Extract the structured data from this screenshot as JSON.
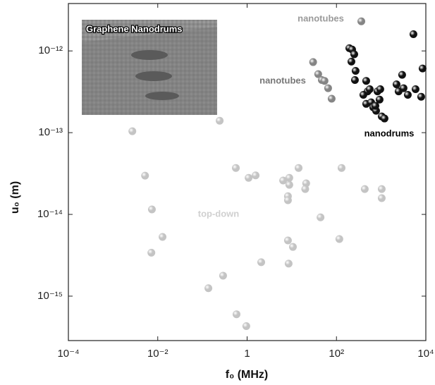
{
  "chart_data": {
    "type": "scatter",
    "x_label": "f₀ (MHz)",
    "y_label": "u₀ (m)",
    "inset_title": "Graphene Nanodrums",
    "annotations": [
      "nanotubes"
    ],
    "log_x": true,
    "log_y": true,
    "xlim": [
      0.0001,
      10000
    ],
    "xticks": [
      {
        "value": 0.0001,
        "label": "10⁻⁴"
      },
      {
        "value": 0.01,
        "label": "10⁻²"
      },
      1,
      {
        "value": 100,
        "label": "10²"
      },
      {
        "value": 10000,
        "label": "10⁴"
      }
    ],
    "ylim": [
      2.86e-16,
      3.8e-12
    ],
    "yticks": [
      {
        "value": 1e-15,
        "label": "10⁻¹⁵"
      },
      {
        "value": 1e-14,
        "label": "10⁻¹⁴"
      },
      {
        "value": 1e-13,
        "label": "10⁻¹³"
      },
      {
        "value": 1e-12,
        "label": "10⁻¹²"
      }
    ],
    "series": [
      {
        "name": "top-down",
        "color": "#c4c4c4",
        "x": [
          0.0027,
          0.0052,
          0.0074,
          0.0128,
          0.0072,
          0.243,
          0.56,
          1.08,
          1.55,
          6.4,
          8.8,
          8.8,
          8.2,
          8.2,
          14.2,
          21,
          20,
          130,
          430,
          1030,
          1030,
          44,
          8.2,
          10.6,
          116,
          8.5,
          2.07,
          0.29,
          0.136,
          0.58,
          0.96
        ],
        "values": [
          1.04e-13,
          2.98e-14,
          1.15e-14,
          5.3e-15,
          3.4e-15,
          1.4e-13,
          3.7e-14,
          2.8e-14,
          3e-14,
          2.6e-14,
          2.8e-14,
          2.3e-14,
          1.67e-14,
          1.49e-14,
          3.7e-14,
          2.4e-14,
          2.04e-14,
          3.7e-14,
          2.04e-14,
          2.04e-14,
          1.58e-14,
          9.2e-15,
          4.8e-15,
          4e-15,
          5e-15,
          2.5e-15,
          2.6e-15,
          1.78e-15,
          1.25e-15,
          6e-16,
          4.3e-16
        ]
      },
      {
        "name": "nanotubes",
        "color": "#858585",
        "x": [
          30,
          39,
          47,
          54,
          65,
          78,
          360
        ],
        "values": [
          7.3e-13,
          5.2e-13,
          4.4e-13,
          4.3e-13,
          3.5e-13,
          2.6e-13,
          2.3e-12
        ]
      },
      {
        "name": "nanodrums",
        "color": "#111111",
        "x": [
          194,
          224,
          250,
          216,
          268,
          259,
          463,
          498,
          555,
          400,
          463,
          597,
          666,
          770,
          923,
          828,
          957,
          743,
          1030,
          1190,
          2210,
          2460,
          2950,
          3170,
          3950,
          5280,
          5890,
          7870,
          8460
        ],
        "values": [
          1.08e-12,
          1.04e-12,
          9.1e-13,
          7.4e-13,
          5.7e-13,
          4.4e-13,
          4.3e-13,
          3.2e-13,
          3.4e-13,
          2.9e-13,
          2.25e-13,
          2.35e-13,
          2.04e-13,
          1.85e-13,
          2.54e-13,
          3.2e-13,
          3.4e-13,
          2.13e-13,
          1.58e-13,
          1.49e-13,
          3.9e-13,
          3.2e-13,
          5.1e-13,
          3.5e-13,
          2.9e-13,
          1.6e-12,
          3.4e-13,
          2.75e-13,
          6.1e-13
        ]
      }
    ]
  }
}
